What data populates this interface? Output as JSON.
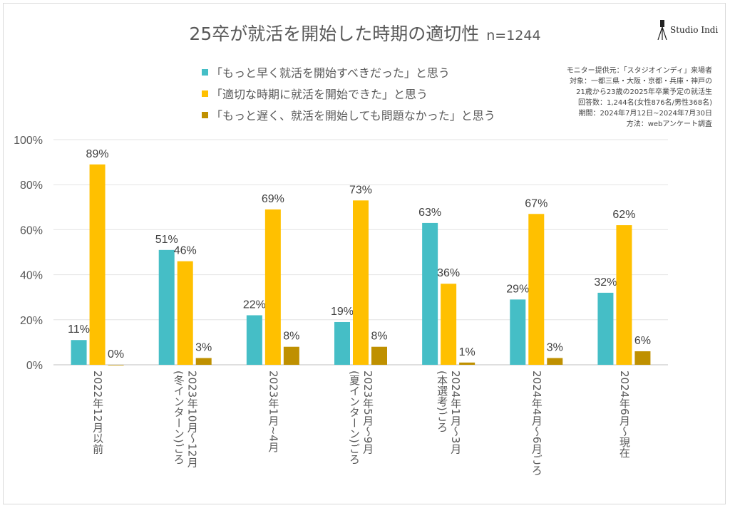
{
  "title": "25卒が就活を開始した時期の適切性",
  "sample": "n=1244",
  "logo": "Studio Indi",
  "notes": [
    "モニター提供元：「スタジオインディ」来場者",
    "対象：一都三県・大阪・京都・兵庫・神戸の",
    "21歳から23歳の2025年卒業予定の就活生",
    "回答数：1,244名(女性876名/男性368名)",
    "期間：2024年7月12日~2024年7月30日",
    "方法：webアンケート調査"
  ],
  "chart_data": {
    "type": "bar",
    "categories": [
      [
        "2022年12月以前"
      ],
      [
        "2023年10月～12月",
        "(冬インターン)ごろ"
      ],
      [
        "2023年1月~4月"
      ],
      [
        "2023年5月～9月",
        "(夏インターン)ごろ"
      ],
      [
        "2024年1月～3月",
        "(本選考)ごろ"
      ],
      [
        "2024年4月～6月ごろ"
      ],
      [
        "2024年6月～現在"
      ]
    ],
    "series": [
      {
        "name": "「もっと早く就活を開始すべきだった」と思う",
        "color": "#45BEC6",
        "values": [
          11,
          51,
          22,
          19,
          63,
          29,
          32
        ]
      },
      {
        "name": "「適切な時期に就活を開始できた」と思う",
        "color": "#FFC000",
        "values": [
          89,
          46,
          69,
          73,
          36,
          67,
          62
        ]
      },
      {
        "name": "「もっと遅く、就活を開始しても問題なかった」と思う",
        "color": "#BF9000",
        "values": [
          0,
          3,
          8,
          8,
          1,
          3,
          6
        ]
      }
    ],
    "ylim": [
      0,
      100
    ],
    "yticks": [
      "0%",
      "20%",
      "40%",
      "60%",
      "80%",
      "100%"
    ],
    "grid": true,
    "legend": "top-center"
  }
}
